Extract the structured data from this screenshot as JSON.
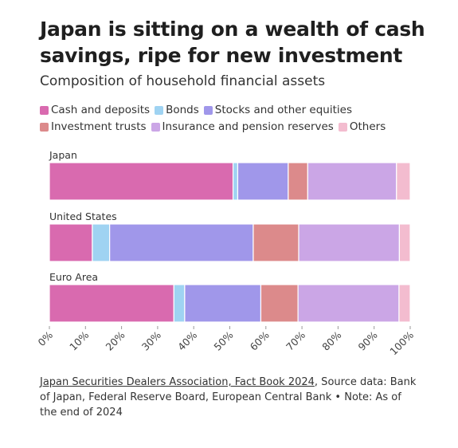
{
  "title": "Japan is sitting on a wealth of cash savings, ripe for new investment",
  "subtitle": "Composition of household financial assets",
  "footer": {
    "source_link": "Japan Securities Dealers Association, Fact Book 2024",
    "note": ", Source data: Bank of Japan, Federal Reserve Board, European Central Bank • Note: As of the end of 2024"
  },
  "chart_data": {
    "type": "bar",
    "orientation": "horizontal",
    "stacked": true,
    "legend_position": "top",
    "grid": false,
    "xlim": [
      0,
      100
    ],
    "x_ticks": [
      "0%",
      "10%",
      "20%",
      "30%",
      "40%",
      "50%",
      "60%",
      "70%",
      "80%",
      "90%",
      "100%"
    ],
    "categories": [
      "Japan",
      "United States",
      "Euro Area"
    ],
    "series": [
      {
        "name": "Cash and deposits",
        "color": "#d96aaf",
        "values": [
          50.9,
          11.9,
          34.5
        ]
      },
      {
        "name": "Bonds",
        "color": "#9fd3f2",
        "values": [
          1.3,
          4.8,
          3.0
        ]
      },
      {
        "name": "Stocks and other equities",
        "color": "#a097ea",
        "values": [
          14.0,
          39.8,
          21.1
        ]
      },
      {
        "name": "Investment trusts",
        "color": "#dc8a8b",
        "values": [
          5.4,
          12.6,
          10.3
        ]
      },
      {
        "name": "Insurance and pension reserves",
        "color": "#cba6e6",
        "values": [
          24.6,
          27.9,
          28.0
        ]
      },
      {
        "name": "Others",
        "color": "#f3bccf",
        "values": [
          3.8,
          3.0,
          3.1
        ]
      }
    ]
  }
}
